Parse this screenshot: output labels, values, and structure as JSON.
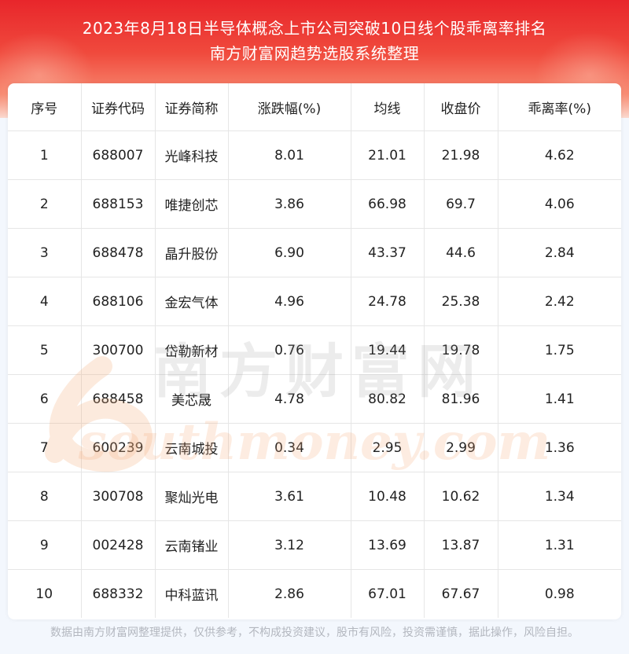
{
  "header": {
    "title_line1": "2023年8月18日半导体概念上市公司突破10日线个股乖离率排名",
    "title_line2": "南方财富网趋势选股系统整理"
  },
  "table": {
    "columns": [
      "序号",
      "证券代码",
      "证券简称",
      "涨跌幅(%)",
      "均线",
      "收盘价",
      "乖离率(%)"
    ],
    "rows": [
      [
        "1",
        "688007",
        "光峰科技",
        "8.01",
        "21.01",
        "21.98",
        "4.62"
      ],
      [
        "2",
        "688153",
        "唯捷创芯",
        "3.86",
        "66.98",
        "69.7",
        "4.06"
      ],
      [
        "3",
        "688478",
        "晶升股份",
        "6.90",
        "43.37",
        "44.6",
        "2.84"
      ],
      [
        "4",
        "688106",
        "金宏气体",
        "4.96",
        "24.78",
        "25.38",
        "2.42"
      ],
      [
        "5",
        "300700",
        "岱勒新材",
        "0.76",
        "19.44",
        "19.78",
        "1.75"
      ],
      [
        "6",
        "688458",
        "美芯晟",
        "4.78",
        "80.82",
        "81.96",
        "1.41"
      ],
      [
        "7",
        "600239",
        "云南城投",
        "0.34",
        "2.95",
        "2.99",
        "1.36"
      ],
      [
        "8",
        "300708",
        "聚灿光电",
        "3.61",
        "10.48",
        "10.62",
        "1.34"
      ],
      [
        "9",
        "002428",
        "云南锗业",
        "3.12",
        "13.69",
        "13.87",
        "1.31"
      ],
      [
        "10",
        "688332",
        "中科蓝讯",
        "2.86",
        "67.01",
        "67.67",
        "0.98"
      ]
    ]
  },
  "watermark": {
    "cn": "南方财富网",
    "en": "southmoney.com"
  },
  "footer": {
    "disclaimer": "数据由南方财富网整理提供，仅供参考，不构成投资建议，股市有风险，投资需谨慎，据此操作，风险自担。"
  }
}
